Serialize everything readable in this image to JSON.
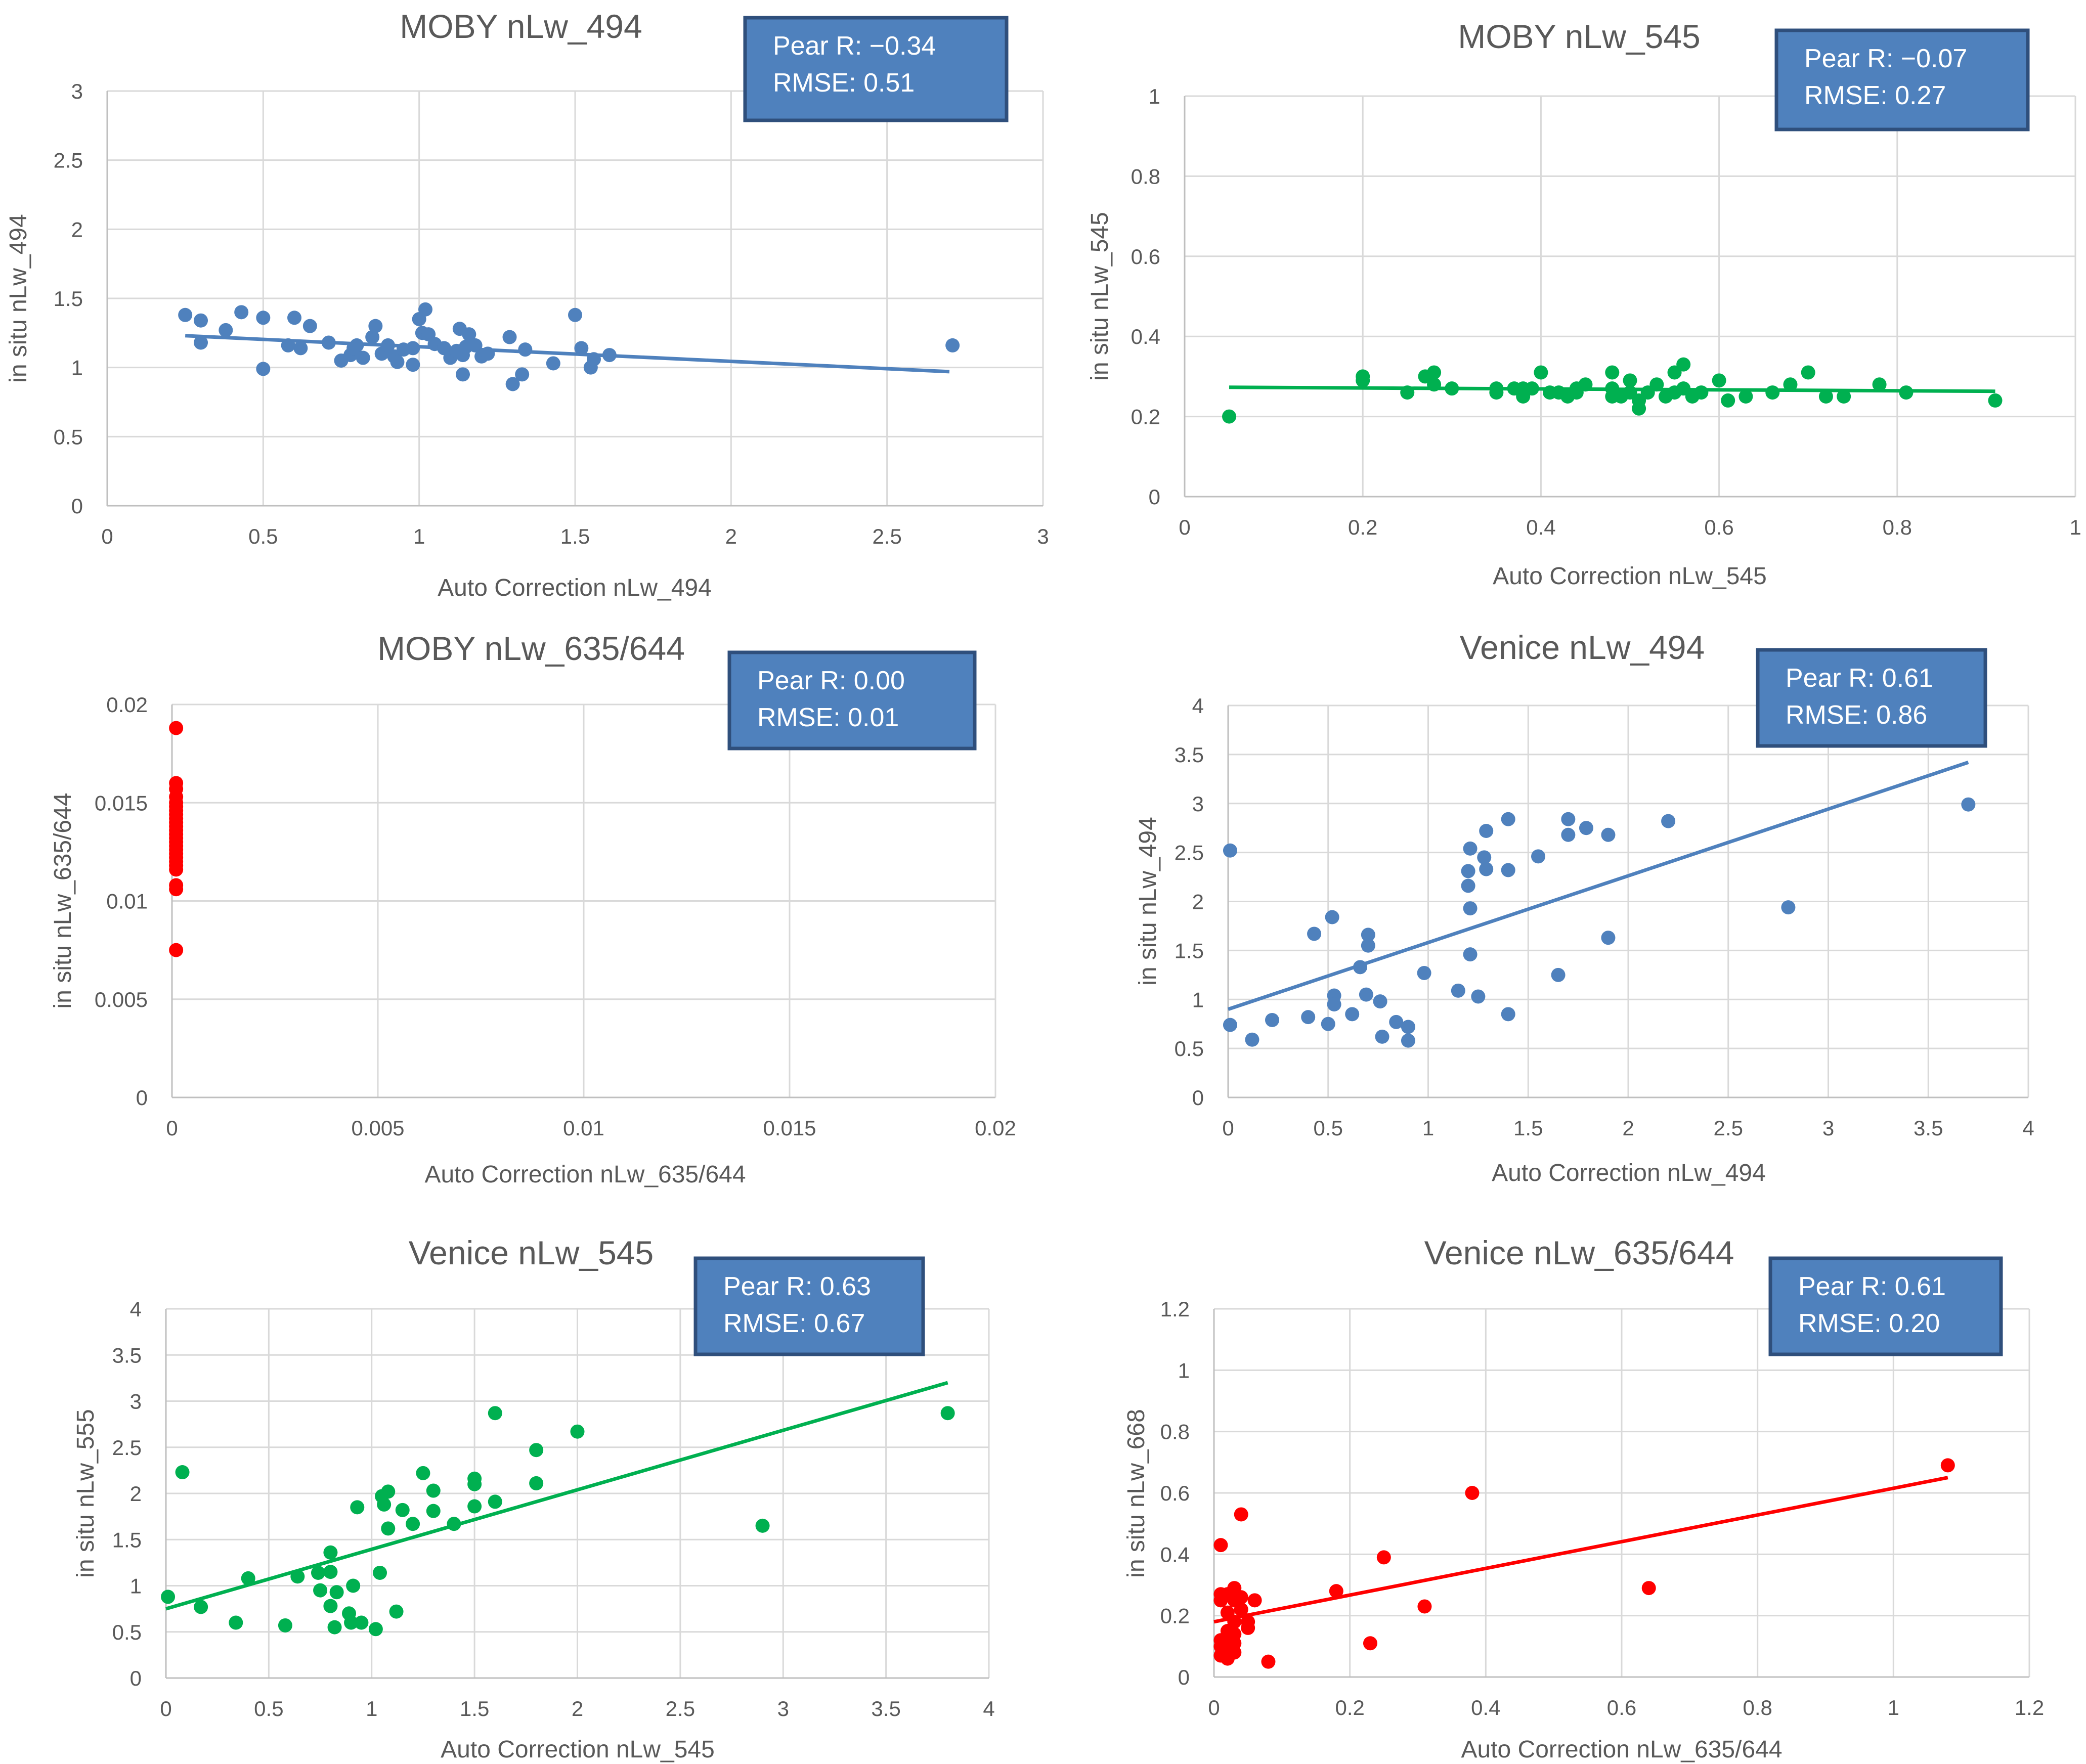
{
  "chart_data": [
    {
      "type": "scatter",
      "title": "MOBY nLw_494",
      "xlabel": "Auto Correction nLw_494",
      "ylabel": "in situ nLw_494",
      "xlim": [
        0,
        3
      ],
      "ylim": [
        0,
        3
      ],
      "xticks": [
        0,
        0.5,
        1,
        1.5,
        2,
        2.5,
        3
      ],
      "yticks": [
        0,
        0.5,
        1,
        1.5,
        2,
        2.5,
        3
      ],
      "xtick_labels": [
        "0",
        "0.5",
        "1",
        "1.5",
        "2",
        "2.5",
        "3"
      ],
      "ytick_labels": [
        "0",
        "0.5",
        "1",
        "1.5",
        "2",
        "2.5",
        "3"
      ],
      "color": "#4f81bd",
      "stats": [
        "Pear R: −0.34",
        "RMSE: 0.51"
      ],
      "trendline": [
        [
          0.25,
          1.23
        ],
        [
          2.7,
          0.97
        ]
      ],
      "points": [
        [
          0.25,
          1.38
        ],
        [
          0.3,
          1.34
        ],
        [
          0.3,
          1.18
        ],
        [
          0.38,
          1.27
        ],
        [
          0.43,
          1.4
        ],
        [
          0.5,
          1.36
        ],
        [
          0.5,
          0.99
        ],
        [
          0.58,
          1.16
        ],
        [
          0.6,
          1.36
        ],
        [
          0.62,
          1.14
        ],
        [
          0.65,
          1.3
        ],
        [
          0.71,
          1.18
        ],
        [
          0.75,
          1.05
        ],
        [
          0.78,
          1.09
        ],
        [
          0.79,
          1.14
        ],
        [
          0.8,
          1.16
        ],
        [
          0.82,
          1.07
        ],
        [
          0.85,
          1.22
        ],
        [
          0.86,
          1.3
        ],
        [
          0.88,
          1.1
        ],
        [
          0.9,
          1.16
        ],
        [
          0.92,
          1.08
        ],
        [
          0.93,
          1.04
        ],
        [
          0.95,
          1.13
        ],
        [
          0.98,
          1.02
        ],
        [
          0.98,
          1.14
        ],
        [
          1.0,
          1.35
        ],
        [
          1.01,
          1.25
        ],
        [
          1.02,
          1.42
        ],
        [
          1.03,
          1.24
        ],
        [
          1.05,
          1.17
        ],
        [
          1.08,
          1.14
        ],
        [
          1.1,
          1.07
        ],
        [
          1.12,
          1.12
        ],
        [
          1.13,
          1.28
        ],
        [
          1.14,
          1.09
        ],
        [
          1.14,
          0.95
        ],
        [
          1.15,
          1.15
        ],
        [
          1.16,
          1.24
        ],
        [
          1.18,
          1.16
        ],
        [
          1.2,
          1.08
        ],
        [
          1.22,
          1.1
        ],
        [
          1.29,
          1.22
        ],
        [
          1.3,
          0.88
        ],
        [
          1.33,
          0.95
        ],
        [
          1.34,
          1.13
        ],
        [
          1.43,
          1.03
        ],
        [
          1.5,
          1.38
        ],
        [
          1.52,
          1.14
        ],
        [
          1.55,
          1.0
        ],
        [
          1.56,
          1.06
        ],
        [
          1.61,
          1.09
        ],
        [
          2.71,
          1.16
        ]
      ]
    },
    {
      "type": "scatter",
      "title": "MOBY nLw_545",
      "xlabel": "Auto Correction nLw_545",
      "ylabel": "in situ nLw_545",
      "xlim": [
        0,
        1
      ],
      "ylim": [
        0,
        1
      ],
      "xticks": [
        0,
        0.2,
        0.4,
        0.6,
        0.8,
        1
      ],
      "yticks": [
        0,
        0.2,
        0.4,
        0.6,
        0.8,
        1
      ],
      "xtick_labels": [
        "0",
        "0.2",
        "0.4",
        "0.6",
        "0.8",
        "1"
      ],
      "ytick_labels": [
        "0",
        "0.2",
        "0.4",
        "0.6",
        "0.8",
        "1"
      ],
      "color": "#00b050",
      "stats": [
        "Pear R: −0.07",
        "RMSE: 0.27"
      ],
      "trendline": [
        [
          0.05,
          0.273
        ],
        [
          0.91,
          0.263
        ]
      ],
      "points": [
        [
          0.05,
          0.2
        ],
        [
          0.2,
          0.29
        ],
        [
          0.2,
          0.3
        ],
        [
          0.25,
          0.26
        ],
        [
          0.27,
          0.3
        ],
        [
          0.28,
          0.31
        ],
        [
          0.28,
          0.28
        ],
        [
          0.3,
          0.27
        ],
        [
          0.35,
          0.27
        ],
        [
          0.35,
          0.26
        ],
        [
          0.37,
          0.27
        ],
        [
          0.38,
          0.25
        ],
        [
          0.38,
          0.27
        ],
        [
          0.39,
          0.27
        ],
        [
          0.4,
          0.31
        ],
        [
          0.41,
          0.26
        ],
        [
          0.42,
          0.26
        ],
        [
          0.43,
          0.25
        ],
        [
          0.44,
          0.26
        ],
        [
          0.44,
          0.27
        ],
        [
          0.45,
          0.28
        ],
        [
          0.48,
          0.31
        ],
        [
          0.48,
          0.25
        ],
        [
          0.48,
          0.27
        ],
        [
          0.49,
          0.25
        ],
        [
          0.5,
          0.29
        ],
        [
          0.5,
          0.26
        ],
        [
          0.51,
          0.24
        ],
        [
          0.51,
          0.22
        ],
        [
          0.52,
          0.26
        ],
        [
          0.53,
          0.28
        ],
        [
          0.54,
          0.25
        ],
        [
          0.55,
          0.31
        ],
        [
          0.55,
          0.26
        ],
        [
          0.56,
          0.27
        ],
        [
          0.56,
          0.33
        ],
        [
          0.57,
          0.25
        ],
        [
          0.58,
          0.26
        ],
        [
          0.6,
          0.29
        ],
        [
          0.61,
          0.24
        ],
        [
          0.63,
          0.25
        ],
        [
          0.66,
          0.26
        ],
        [
          0.68,
          0.28
        ],
        [
          0.7,
          0.31
        ],
        [
          0.72,
          0.25
        ],
        [
          0.74,
          0.25
        ],
        [
          0.78,
          0.28
        ],
        [
          0.81,
          0.26
        ],
        [
          0.91,
          0.24
        ]
      ]
    },
    {
      "type": "scatter",
      "title": "MOBY nLw_635/644",
      "xlabel": "Auto Correction nLw_635/644",
      "ylabel": "in situ nLw_635/644",
      "xlim": [
        0,
        0.02
      ],
      "ylim": [
        0,
        0.02
      ],
      "xticks": [
        0,
        0.005,
        0.01,
        0.015,
        0.02
      ],
      "yticks": [
        0,
        0.005,
        0.01,
        0.015,
        0.02
      ],
      "xtick_labels": [
        "0",
        "0.005",
        "0.01",
        "0.015",
        "0.02"
      ],
      "ytick_labels": [
        "0",
        "0.005",
        "0.01",
        "0.015",
        "0.02"
      ],
      "color": "#ff0000",
      "stats": [
        "Pear R: 0.00",
        "RMSE: 0.01"
      ],
      "trendline": [],
      "points": [
        [
          0.0001,
          0.0188
        ],
        [
          0.0001,
          0.016
        ],
        [
          0.0001,
          0.0157
        ],
        [
          0.0001,
          0.0153
        ],
        [
          0.0001,
          0.015
        ],
        [
          0.0001,
          0.0148
        ],
        [
          0.0001,
          0.0146
        ],
        [
          0.0001,
          0.0144
        ],
        [
          0.0001,
          0.0142
        ],
        [
          0.0001,
          0.014
        ],
        [
          0.0001,
          0.0138
        ],
        [
          0.0001,
          0.0136
        ],
        [
          0.0001,
          0.0134
        ],
        [
          0.0001,
          0.0132
        ],
        [
          0.0001,
          0.013
        ],
        [
          0.0001,
          0.0128
        ],
        [
          0.0001,
          0.0126
        ],
        [
          0.0001,
          0.0124
        ],
        [
          0.0001,
          0.0122
        ],
        [
          0.0001,
          0.012
        ],
        [
          0.0001,
          0.0118
        ],
        [
          0.0001,
          0.0116
        ],
        [
          0.0001,
          0.0108
        ],
        [
          0.0001,
          0.0106
        ],
        [
          0.0001,
          0.0075
        ]
      ]
    },
    {
      "type": "scatter",
      "title": "Venice nLw_494",
      "xlabel": "Auto Correction nLw_494",
      "ylabel": "in situ nLw_494",
      "xlim": [
        0,
        4
      ],
      "ylim": [
        0,
        4
      ],
      "xticks": [
        0,
        0.5,
        1,
        1.5,
        2,
        2.5,
        3,
        3.5,
        4
      ],
      "yticks": [
        0,
        0.5,
        1,
        1.5,
        2,
        2.5,
        3,
        3.5,
        4
      ],
      "xtick_labels": [
        "0",
        "0.5",
        "1",
        "1.5",
        "2",
        "2.5",
        "3",
        "3.5",
        "4"
      ],
      "ytick_labels": [
        "0",
        "0.5",
        "1",
        "1.5",
        "2",
        "2.5",
        "3",
        "3.5",
        "4"
      ],
      "color": "#4f81bd",
      "stats": [
        "Pear R: 0.61",
        "RMSE: 0.86"
      ],
      "trendline": [
        [
          0.0,
          0.9
        ],
        [
          3.7,
          3.42
        ]
      ],
      "points": [
        [
          0.01,
          2.52
        ],
        [
          0.01,
          0.74
        ],
        [
          0.12,
          0.59
        ],
        [
          0.22,
          0.79
        ],
        [
          0.4,
          0.82
        ],
        [
          0.43,
          1.67
        ],
        [
          0.5,
          0.75
        ],
        [
          0.52,
          1.84
        ],
        [
          0.53,
          1.04
        ],
        [
          0.53,
          0.95
        ],
        [
          0.62,
          0.85
        ],
        [
          0.66,
          1.33
        ],
        [
          0.69,
          1.05
        ],
        [
          0.7,
          1.66
        ],
        [
          0.7,
          1.55
        ],
        [
          0.76,
          0.98
        ],
        [
          0.77,
          0.62
        ],
        [
          0.84,
          0.77
        ],
        [
          0.9,
          0.72
        ],
        [
          0.9,
          0.58
        ],
        [
          0.98,
          1.27
        ],
        [
          1.15,
          1.09
        ],
        [
          1.2,
          2.31
        ],
        [
          1.2,
          2.16
        ],
        [
          1.21,
          2.54
        ],
        [
          1.21,
          1.93
        ],
        [
          1.21,
          1.46
        ],
        [
          1.25,
          1.03
        ],
        [
          1.28,
          2.45
        ],
        [
          1.29,
          2.72
        ],
        [
          1.29,
          2.33
        ],
        [
          1.4,
          2.84
        ],
        [
          1.4,
          2.32
        ],
        [
          1.4,
          0.85
        ],
        [
          1.55,
          2.46
        ],
        [
          1.65,
          1.25
        ],
        [
          1.7,
          2.84
        ],
        [
          1.7,
          2.68
        ],
        [
          1.79,
          2.75
        ],
        [
          1.9,
          2.68
        ],
        [
          1.9,
          1.63
        ],
        [
          2.2,
          2.82
        ],
        [
          2.8,
          1.94
        ],
        [
          3.7,
          2.99
        ]
      ]
    },
    {
      "type": "scatter",
      "title": "Venice nLw_545",
      "xlabel": "Auto Correction nLw_545",
      "ylabel": "in situ nLw_555",
      "xlim": [
        0,
        4
      ],
      "ylim": [
        0,
        4
      ],
      "xticks": [
        0,
        0.5,
        1,
        1.5,
        2,
        2.5,
        3,
        3.5,
        4
      ],
      "yticks": [
        0,
        0.5,
        1,
        1.5,
        2,
        2.5,
        3,
        3.5,
        4
      ],
      "xtick_labels": [
        "0",
        "0.5",
        "1",
        "1.5",
        "2",
        "2.5",
        "3",
        "3.5",
        "4"
      ],
      "ytick_labels": [
        "0",
        "0.5",
        "1",
        "1.5",
        "2",
        "2.5",
        "3",
        "3.5",
        "4"
      ],
      "color": "#00b050",
      "stats": [
        "Pear R: 0.63",
        "RMSE: 0.67"
      ],
      "trendline": [
        [
          0.0,
          0.75
        ],
        [
          3.8,
          3.2
        ]
      ],
      "points": [
        [
          0.01,
          0.88
        ],
        [
          0.08,
          2.23
        ],
        [
          0.17,
          0.77
        ],
        [
          0.34,
          0.6
        ],
        [
          0.4,
          1.08
        ],
        [
          0.58,
          0.57
        ],
        [
          0.64,
          1.1
        ],
        [
          0.74,
          1.14
        ],
        [
          0.75,
          0.95
        ],
        [
          0.8,
          1.36
        ],
        [
          0.8,
          1.15
        ],
        [
          0.8,
          0.78
        ],
        [
          0.82,
          0.55
        ],
        [
          0.83,
          0.93
        ],
        [
          0.89,
          0.7
        ],
        [
          0.9,
          0.6
        ],
        [
          0.91,
          1.0
        ],
        [
          0.93,
          1.85
        ],
        [
          0.95,
          0.6
        ],
        [
          1.02,
          0.53
        ],
        [
          1.04,
          1.14
        ],
        [
          1.05,
          1.97
        ],
        [
          1.06,
          1.88
        ],
        [
          1.08,
          2.02
        ],
        [
          1.08,
          1.62
        ],
        [
          1.12,
          0.72
        ],
        [
          1.15,
          1.82
        ],
        [
          1.2,
          1.67
        ],
        [
          1.25,
          2.22
        ],
        [
          1.3,
          2.03
        ],
        [
          1.3,
          1.81
        ],
        [
          1.4,
          1.67
        ],
        [
          1.5,
          2.16
        ],
        [
          1.5,
          2.1
        ],
        [
          1.5,
          1.86
        ],
        [
          1.6,
          2.87
        ],
        [
          1.6,
          1.91
        ],
        [
          1.8,
          2.47
        ],
        [
          1.8,
          2.11
        ],
        [
          2.0,
          2.67
        ],
        [
          2.9,
          1.65
        ],
        [
          3.8,
          2.87
        ]
      ]
    },
    {
      "type": "scatter",
      "title": "Venice nLw_635/644",
      "xlabel": "Auto Correction nLw_635/644",
      "ylabel": "in situ nLw_668",
      "xlim": [
        0,
        1.2
      ],
      "ylim": [
        0,
        1.2
      ],
      "xticks": [
        0,
        0.2,
        0.4,
        0.6,
        0.8,
        1,
        1.2
      ],
      "yticks": [
        0,
        0.2,
        0.4,
        0.6,
        0.8,
        1,
        1.2
      ],
      "xtick_labels": [
        "0",
        "0.2",
        "0.4",
        "0.6",
        "0.8",
        "1",
        "1.2"
      ],
      "ytick_labels": [
        "0",
        "0.2",
        "0.4",
        "0.6",
        "0.8",
        "1",
        "1.2"
      ],
      "color": "#ff0000",
      "stats": [
        "Pear R: 0.61",
        "RMSE: 0.20"
      ],
      "trendline": [
        [
          0.0,
          0.18
        ],
        [
          1.08,
          0.65
        ]
      ],
      "points": [
        [
          0.01,
          0.43
        ],
        [
          0.01,
          0.27
        ],
        [
          0.01,
          0.25
        ],
        [
          0.01,
          0.12
        ],
        [
          0.01,
          0.1
        ],
        [
          0.01,
          0.07
        ],
        [
          0.02,
          0.27
        ],
        [
          0.02,
          0.21
        ],
        [
          0.02,
          0.15
        ],
        [
          0.02,
          0.13
        ],
        [
          0.02,
          0.09
        ],
        [
          0.02,
          0.06
        ],
        [
          0.03,
          0.29
        ],
        [
          0.03,
          0.25
        ],
        [
          0.03,
          0.18
        ],
        [
          0.03,
          0.14
        ],
        [
          0.03,
          0.11
        ],
        [
          0.03,
          0.08
        ],
        [
          0.04,
          0.53
        ],
        [
          0.04,
          0.26
        ],
        [
          0.04,
          0.22
        ],
        [
          0.05,
          0.18
        ],
        [
          0.05,
          0.16
        ],
        [
          0.06,
          0.25
        ],
        [
          0.08,
          0.05
        ],
        [
          0.18,
          0.28
        ],
        [
          0.23,
          0.11
        ],
        [
          0.25,
          0.39
        ],
        [
          0.31,
          0.23
        ],
        [
          0.38,
          0.6
        ],
        [
          0.64,
          0.29
        ],
        [
          1.08,
          0.69
        ]
      ]
    }
  ]
}
